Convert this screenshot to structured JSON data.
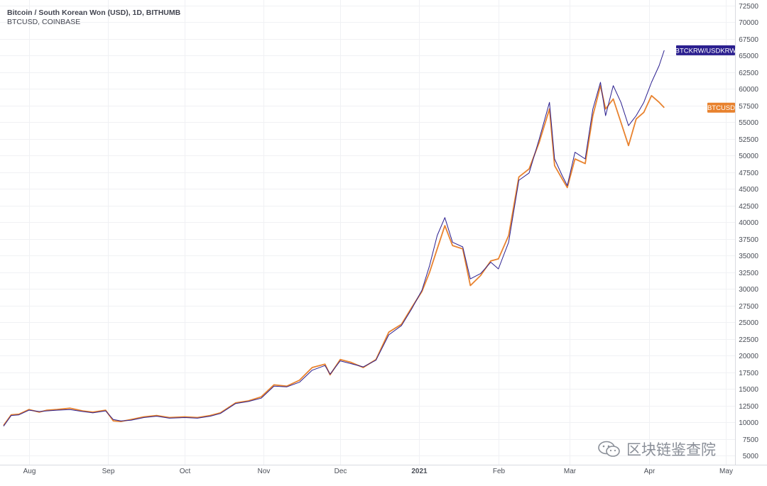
{
  "chart_data": {
    "type": "line",
    "title": "Bitcoin / South Korean Won (USD), 1D, BITHUMB",
    "subtitle": "BTCUSD, COINBASE",
    "x_tick_labels": [
      "Aug",
      "Sep",
      "Oct",
      "Nov",
      "Dec",
      "2021",
      "Feb",
      "Mar",
      "Apr",
      "May"
    ],
    "ylim": [
      5000,
      72500
    ],
    "y_ticks": [
      5000,
      7500,
      10000,
      12500,
      15000,
      17500,
      20000,
      22500,
      25000,
      27500,
      30000,
      32500,
      35000,
      37500,
      40000,
      42500,
      45000,
      47500,
      50000,
      52500,
      55000,
      57500,
      60000,
      62500,
      65000,
      67500,
      70000,
      72500
    ],
    "grid": true,
    "series": [
      {
        "name": "BTCKRW/USDKRW",
        "color": "#2b1f8f",
        "x": [
          "2020-07-22",
          "2020-07-25",
          "2020-07-28",
          "2020-08-01",
          "2020-08-05",
          "2020-08-08",
          "2020-08-12",
          "2020-08-17",
          "2020-08-22",
          "2020-08-26",
          "2020-08-31",
          "2020-09-03",
          "2020-09-06",
          "2020-09-10",
          "2020-09-15",
          "2020-09-20",
          "2020-09-25",
          "2020-10-01",
          "2020-10-06",
          "2020-10-11",
          "2020-10-15",
          "2020-10-21",
          "2020-10-26",
          "2020-10-31",
          "2020-11-05",
          "2020-11-10",
          "2020-11-15",
          "2020-11-20",
          "2020-11-25",
          "2020-11-27",
          "2020-12-01",
          "2020-12-05",
          "2020-12-10",
          "2020-12-15",
          "2020-12-20",
          "2020-12-25",
          "2020-12-29",
          "2021-01-02",
          "2021-01-05",
          "2021-01-08",
          "2021-01-11",
          "2021-01-14",
          "2021-01-18",
          "2021-01-21",
          "2021-01-25",
          "2021-01-29",
          "2021-02-01",
          "2021-02-05",
          "2021-02-09",
          "2021-02-13",
          "2021-02-17",
          "2021-02-21",
          "2021-02-23",
          "2021-02-26",
          "2021-02-28",
          "2021-03-03",
          "2021-03-07",
          "2021-03-10",
          "2021-03-13",
          "2021-03-15",
          "2021-03-18",
          "2021-03-21",
          "2021-03-24",
          "2021-03-27",
          "2021-03-30",
          "2021-04-02",
          "2021-04-05",
          "2021-04-07"
        ],
        "values": [
          9400,
          11000,
          11100,
          11800,
          11600,
          11700,
          11800,
          11900,
          11600,
          11400,
          11700,
          10400,
          10200,
          10300,
          10700,
          10900,
          10600,
          10700,
          10600,
          10900,
          11300,
          12800,
          13100,
          13600,
          15400,
          15300,
          16000,
          17800,
          18500,
          17200,
          19200,
          18800,
          18300,
          19300,
          23100,
          24500,
          27000,
          29800,
          33500,
          38000,
          40700,
          37000,
          36300,
          31500,
          32300,
          34000,
          33000,
          37000,
          46300,
          47400,
          52500,
          58000,
          49500,
          47000,
          45500,
          50500,
          49500,
          57000,
          61000,
          56000,
          60500,
          58000,
          54500,
          56000,
          58000,
          61000,
          63500,
          65800
        ]
      },
      {
        "name": "BTCUSD",
        "color": "#e8822e",
        "x": [
          "2020-07-22",
          "2020-07-25",
          "2020-07-28",
          "2020-08-01",
          "2020-08-05",
          "2020-08-08",
          "2020-08-12",
          "2020-08-17",
          "2020-08-22",
          "2020-08-26",
          "2020-08-31",
          "2020-09-03",
          "2020-09-06",
          "2020-09-10",
          "2020-09-15",
          "2020-09-20",
          "2020-09-25",
          "2020-10-01",
          "2020-10-06",
          "2020-10-11",
          "2020-10-15",
          "2020-10-21",
          "2020-10-26",
          "2020-10-31",
          "2020-11-05",
          "2020-11-10",
          "2020-11-15",
          "2020-11-20",
          "2020-11-25",
          "2020-11-27",
          "2020-12-01",
          "2020-12-05",
          "2020-12-10",
          "2020-12-15",
          "2020-12-20",
          "2020-12-25",
          "2020-12-29",
          "2021-01-02",
          "2021-01-05",
          "2021-01-08",
          "2021-01-11",
          "2021-01-14",
          "2021-01-18",
          "2021-01-21",
          "2021-01-25",
          "2021-01-29",
          "2021-02-01",
          "2021-02-05",
          "2021-02-09",
          "2021-02-13",
          "2021-02-17",
          "2021-02-21",
          "2021-02-23",
          "2021-02-26",
          "2021-02-28",
          "2021-03-03",
          "2021-03-07",
          "2021-03-10",
          "2021-03-13",
          "2021-03-15",
          "2021-03-18",
          "2021-03-21",
          "2021-03-24",
          "2021-03-27",
          "2021-03-30",
          "2021-04-02",
          "2021-04-05",
          "2021-04-07"
        ],
        "values": [
          9500,
          11100,
          11200,
          11900,
          11500,
          11800,
          11900,
          12100,
          11700,
          11500,
          11800,
          10200,
          10100,
          10400,
          10800,
          11000,
          10700,
          10800,
          10700,
          11000,
          11400,
          12900,
          13200,
          13800,
          15600,
          15400,
          16300,
          18200,
          18700,
          17100,
          19400,
          19000,
          18200,
          19400,
          23500,
          24700,
          27200,
          29600,
          32500,
          36000,
          39500,
          36500,
          36000,
          30500,
          32000,
          34200,
          34500,
          38000,
          46800,
          48000,
          52000,
          57000,
          48500,
          46500,
          45200,
          49500,
          48800,
          56000,
          60500,
          57000,
          58500,
          55000,
          51500,
          55500,
          56500,
          59000,
          58000,
          57200
        ]
      }
    ]
  },
  "watermark": {
    "label": "区块链鉴查院",
    "icon": "wechat-icon"
  }
}
